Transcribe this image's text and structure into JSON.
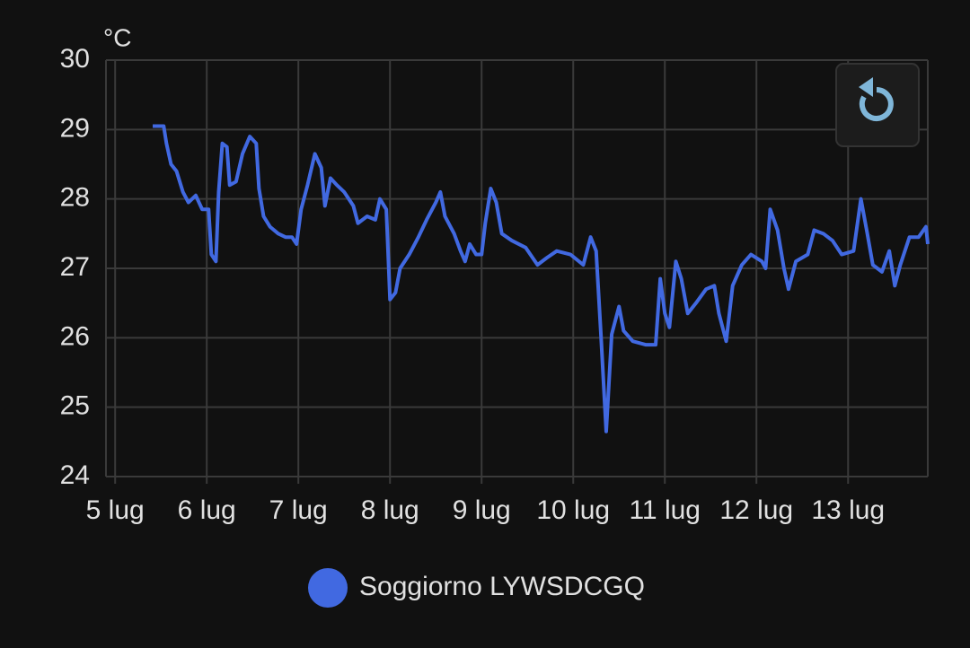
{
  "chart_data": {
    "type": "line",
    "ylabel": "°C",
    "xlim": [
      4.9,
      13.87
    ],
    "ylim": [
      24,
      30
    ],
    "yticks": [
      24,
      25,
      26,
      27,
      28,
      29,
      30
    ],
    "xticks": [
      {
        "value": 5,
        "label": "5 lug"
      },
      {
        "value": 6,
        "label": "6 lug"
      },
      {
        "value": 7,
        "label": "7 lug"
      },
      {
        "value": 8,
        "label": "8 lug"
      },
      {
        "value": 9,
        "label": "9 lug"
      },
      {
        "value": 10,
        "label": "10 lug"
      },
      {
        "value": 11,
        "label": "11 lug"
      },
      {
        "value": 12,
        "label": "12 lug"
      },
      {
        "value": 13,
        "label": "13 lug"
      }
    ],
    "grid": true,
    "legend": "bottom",
    "x": [
      5.41,
      5.53,
      5.56,
      5.61,
      5.67,
      5.74,
      5.8,
      5.88,
      5.95,
      6.02,
      6.05,
      6.1,
      6.13,
      6.17,
      6.22,
      6.25,
      6.32,
      6.39,
      6.47,
      6.54,
      6.57,
      6.62,
      6.69,
      6.78,
      6.86,
      6.93,
      6.98,
      7.03,
      7.1,
      7.18,
      7.25,
      7.29,
      7.35,
      7.42,
      7.5,
      7.6,
      7.65,
      7.75,
      7.84,
      7.89,
      7.96,
      8.0,
      8.06,
      8.11,
      8.21,
      8.31,
      8.4,
      8.5,
      8.55,
      8.6,
      8.7,
      8.77,
      8.82,
      8.87,
      8.94,
      9.0,
      9.04,
      9.1,
      9.16,
      9.22,
      9.33,
      9.48,
      9.61,
      9.71,
      9.82,
      9.97,
      10.11,
      10.19,
      10.25,
      10.3,
      10.36,
      10.42,
      10.5,
      10.55,
      10.65,
      10.79,
      10.9,
      10.95,
      11.0,
      11.05,
      11.12,
      11.18,
      11.25,
      11.34,
      11.45,
      11.54,
      11.59,
      11.67,
      11.74,
      11.84,
      11.94,
      12.06,
      12.1,
      12.15,
      12.23,
      12.3,
      12.35,
      12.43,
      12.56,
      12.63,
      12.73,
      12.83,
      12.93,
      13.06,
      13.14,
      13.21,
      13.27,
      13.37,
      13.45,
      13.51,
      13.57,
      13.67,
      13.77,
      13.85,
      13.87
    ],
    "series": [
      {
        "name": "Soggiorno LYWSDCGQ",
        "color": "#4169e1",
        "values": [
          29.05,
          29.05,
          28.8,
          28.5,
          28.4,
          28.1,
          27.95,
          28.05,
          27.85,
          27.85,
          27.2,
          27.1,
          28.1,
          28.8,
          28.75,
          28.2,
          28.25,
          28.65,
          28.9,
          28.8,
          28.15,
          27.75,
          27.6,
          27.5,
          27.45,
          27.45,
          27.35,
          27.85,
          28.2,
          28.65,
          28.45,
          27.9,
          28.3,
          28.2,
          28.1,
          27.9,
          27.65,
          27.75,
          27.7,
          28.0,
          27.85,
          26.55,
          26.65,
          27.0,
          27.2,
          27.45,
          27.7,
          27.95,
          28.1,
          27.75,
          27.5,
          27.25,
          27.1,
          27.35,
          27.2,
          27.2,
          27.65,
          28.15,
          27.95,
          27.5,
          27.4,
          27.3,
          27.05,
          27.15,
          27.25,
          27.2,
          27.05,
          27.45,
          27.25,
          26.1,
          24.65,
          26.05,
          26.45,
          26.1,
          25.95,
          25.9,
          25.9,
          26.85,
          26.35,
          26.15,
          27.1,
          26.85,
          26.35,
          26.5,
          26.7,
          26.75,
          26.35,
          25.95,
          26.75,
          27.05,
          27.2,
          27.1,
          27.0,
          27.85,
          27.55,
          27.0,
          26.7,
          27.1,
          27.2,
          27.55,
          27.5,
          27.4,
          27.2,
          27.25,
          28.0,
          27.5,
          27.05,
          26.95,
          27.25,
          26.75,
          27.05,
          27.45,
          27.45,
          27.6,
          27.35
        ]
      }
    ]
  }
}
